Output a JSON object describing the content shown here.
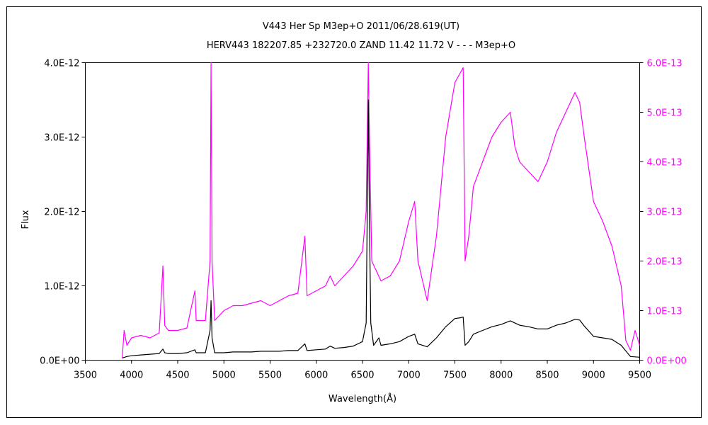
{
  "chart_data": {
    "type": "line",
    "title_line1": "V443 Her    Sp M3ep+O    2011/06/28.619(UT)",
    "title_line2": "HERV443 182207.85 +232720.0 ZAND 11.42 11.72 V - - - M3ep+O",
    "xlabel": "Wavelength(Å)",
    "ylabel": "Flux",
    "xlim": [
      3500,
      9500
    ],
    "x_ticks": [
      "3500",
      "4000",
      "4500",
      "5000",
      "5500",
      "6000",
      "6500",
      "7000",
      "7500",
      "8000",
      "8500",
      "9000",
      "9500"
    ],
    "y_left": {
      "lim": [
        0,
        4e-12
      ],
      "ticks": [
        "0.0E+00",
        "1.0E-12",
        "2.0E-12",
        "3.0E-12",
        "4.0E-12"
      ],
      "color": "#000000"
    },
    "y_right": {
      "lim": [
        0,
        6e-13
      ],
      "ticks": [
        "0.0E+00",
        "1.0E-13",
        "2.0E-13",
        "3.0E-13",
        "4.0E-13",
        "5.0E-13",
        "6.0E-13"
      ],
      "color": "#ff00ff"
    },
    "grid": false,
    "series": [
      {
        "axis": "left",
        "color": "#000000",
        "points": [
          [
            3900,
            3e-14
          ],
          [
            3950,
            5e-14
          ],
          [
            4000,
            6e-14
          ],
          [
            4100,
            7e-14
          ],
          [
            4200,
            8e-14
          ],
          [
            4300,
            9e-14
          ],
          [
            4340,
            1.5e-13
          ],
          [
            4360,
            1e-13
          ],
          [
            4400,
            9e-14
          ],
          [
            4500,
            9e-14
          ],
          [
            4600,
            1e-13
          ],
          [
            4686,
            1.4e-13
          ],
          [
            4700,
            1e-13
          ],
          [
            4800,
            1e-13
          ],
          [
            4850,
            4e-13
          ],
          [
            4861,
            8e-13
          ],
          [
            4872,
            3e-13
          ],
          [
            4900,
            1e-13
          ],
          [
            5000,
            1e-13
          ],
          [
            5100,
            1.1e-13
          ],
          [
            5200,
            1.1e-13
          ],
          [
            5300,
            1.1e-13
          ],
          [
            5400,
            1.2e-13
          ],
          [
            5500,
            1.2e-13
          ],
          [
            5600,
            1.2e-13
          ],
          [
            5700,
            1.3e-13
          ],
          [
            5800,
            1.3e-13
          ],
          [
            5876,
            2.2e-13
          ],
          [
            5900,
            1.3e-13
          ],
          [
            6000,
            1.4e-13
          ],
          [
            6100,
            1.5e-13
          ],
          [
            6150,
            1.9e-13
          ],
          [
            6200,
            1.6e-13
          ],
          [
            6300,
            1.7e-13
          ],
          [
            6400,
            1.9e-13
          ],
          [
            6500,
            2.5e-13
          ],
          [
            6540,
            5e-13
          ],
          [
            6563,
            3.5e-12
          ],
          [
            6575,
            1.9e-12
          ],
          [
            6590,
            5e-13
          ],
          [
            6620,
            2e-13
          ],
          [
            6678,
            3e-13
          ],
          [
            6700,
            2e-13
          ],
          [
            6800,
            2.2e-13
          ],
          [
            6900,
            2.5e-13
          ],
          [
            7000,
            3.2e-13
          ],
          [
            7065,
            3.5e-13
          ],
          [
            7100,
            2.2e-13
          ],
          [
            7200,
            1.8e-13
          ],
          [
            7300,
            3e-13
          ],
          [
            7400,
            4.5e-13
          ],
          [
            7500,
            5.6e-13
          ],
          [
            7560,
            5.7e-13
          ],
          [
            7590,
            5.8e-13
          ],
          [
            7610,
            2e-13
          ],
          [
            7650,
            2.5e-13
          ],
          [
            7700,
            3.5e-13
          ],
          [
            7800,
            4e-13
          ],
          [
            7900,
            4.5e-13
          ],
          [
            8000,
            4.8e-13
          ],
          [
            8100,
            5.3e-13
          ],
          [
            8200,
            4.7e-13
          ],
          [
            8300,
            4.5e-13
          ],
          [
            8400,
            4.2e-13
          ],
          [
            8500,
            4.2e-13
          ],
          [
            8600,
            4.7e-13
          ],
          [
            8700,
            5e-13
          ],
          [
            8800,
            5.5e-13
          ],
          [
            8850,
            5.4e-13
          ],
          [
            8900,
            4.6e-13
          ],
          [
            9000,
            3.2e-13
          ],
          [
            9100,
            3e-13
          ],
          [
            9200,
            2.8e-13
          ],
          [
            9300,
            2e-13
          ],
          [
            9400,
            5e-14
          ],
          [
            9500,
            4e-14
          ]
        ]
      },
      {
        "axis": "right",
        "color": "#ff00ff",
        "points": [
          [
            3900,
            5e-15
          ],
          [
            3920,
            6e-14
          ],
          [
            3950,
            3e-14
          ],
          [
            4000,
            4.5e-14
          ],
          [
            4100,
            5e-14
          ],
          [
            4200,
            4.5e-14
          ],
          [
            4300,
            5.5e-14
          ],
          [
            4340,
            1.9e-13
          ],
          [
            4360,
            7e-14
          ],
          [
            4400,
            6e-14
          ],
          [
            4500,
            6e-14
          ],
          [
            4600,
            6.5e-14
          ],
          [
            4686,
            1.4e-13
          ],
          [
            4700,
            8e-14
          ],
          [
            4800,
            8e-14
          ],
          [
            4850,
            2e-13
          ],
          [
            4861,
            6e-13
          ],
          [
            4872,
            2e-13
          ],
          [
            4900,
            8e-14
          ],
          [
            5000,
            1e-13
          ],
          [
            5100,
            1.1e-13
          ],
          [
            5200,
            1.1e-13
          ],
          [
            5300,
            1.15e-13
          ],
          [
            5400,
            1.2e-13
          ],
          [
            5500,
            1.1e-13
          ],
          [
            5600,
            1.2e-13
          ],
          [
            5700,
            1.3e-13
          ],
          [
            5800,
            1.35e-13
          ],
          [
            5876,
            2.5e-13
          ],
          [
            5900,
            1.3e-13
          ],
          [
            6000,
            1.4e-13
          ],
          [
            6100,
            1.5e-13
          ],
          [
            6150,
            1.7e-13
          ],
          [
            6200,
            1.5e-13
          ],
          [
            6300,
            1.7e-13
          ],
          [
            6400,
            1.9e-13
          ],
          [
            6500,
            2.2e-13
          ],
          [
            6540,
            3e-13
          ],
          [
            6563,
            6e-13
          ],
          [
            6575,
            4.5e-13
          ],
          [
            6600,
            2e-13
          ],
          [
            6700,
            1.6e-13
          ],
          [
            6800,
            1.7e-13
          ],
          [
            6900,
            2e-13
          ],
          [
            7000,
            2.8e-13
          ],
          [
            7065,
            3.2e-13
          ],
          [
            7100,
            2e-13
          ],
          [
            7200,
            1.2e-13
          ],
          [
            7300,
            2.5e-13
          ],
          [
            7400,
            4.5e-13
          ],
          [
            7500,
            5.6e-13
          ],
          [
            7560,
            5.8e-13
          ],
          [
            7590,
            5.9e-13
          ],
          [
            7610,
            2e-13
          ],
          [
            7650,
            2.5e-13
          ],
          [
            7700,
            3.5e-13
          ],
          [
            7800,
            4e-13
          ],
          [
            7900,
            4.5e-13
          ],
          [
            8000,
            4.8e-13
          ],
          [
            8100,
            5e-13
          ],
          [
            8150,
            4.3e-13
          ],
          [
            8200,
            4e-13
          ],
          [
            8300,
            3.8e-13
          ],
          [
            8400,
            3.6e-13
          ],
          [
            8500,
            4e-13
          ],
          [
            8600,
            4.6e-13
          ],
          [
            8700,
            5e-13
          ],
          [
            8800,
            5.4e-13
          ],
          [
            8850,
            5.2e-13
          ],
          [
            8900,
            4.5e-13
          ],
          [
            9000,
            3.2e-13
          ],
          [
            9100,
            2.8e-13
          ],
          [
            9200,
            2.3e-13
          ],
          [
            9300,
            1.5e-13
          ],
          [
            9350,
            4e-14
          ],
          [
            9400,
            2e-14
          ],
          [
            9450,
            6e-14
          ],
          [
            9500,
            3e-14
          ]
        ]
      }
    ]
  }
}
